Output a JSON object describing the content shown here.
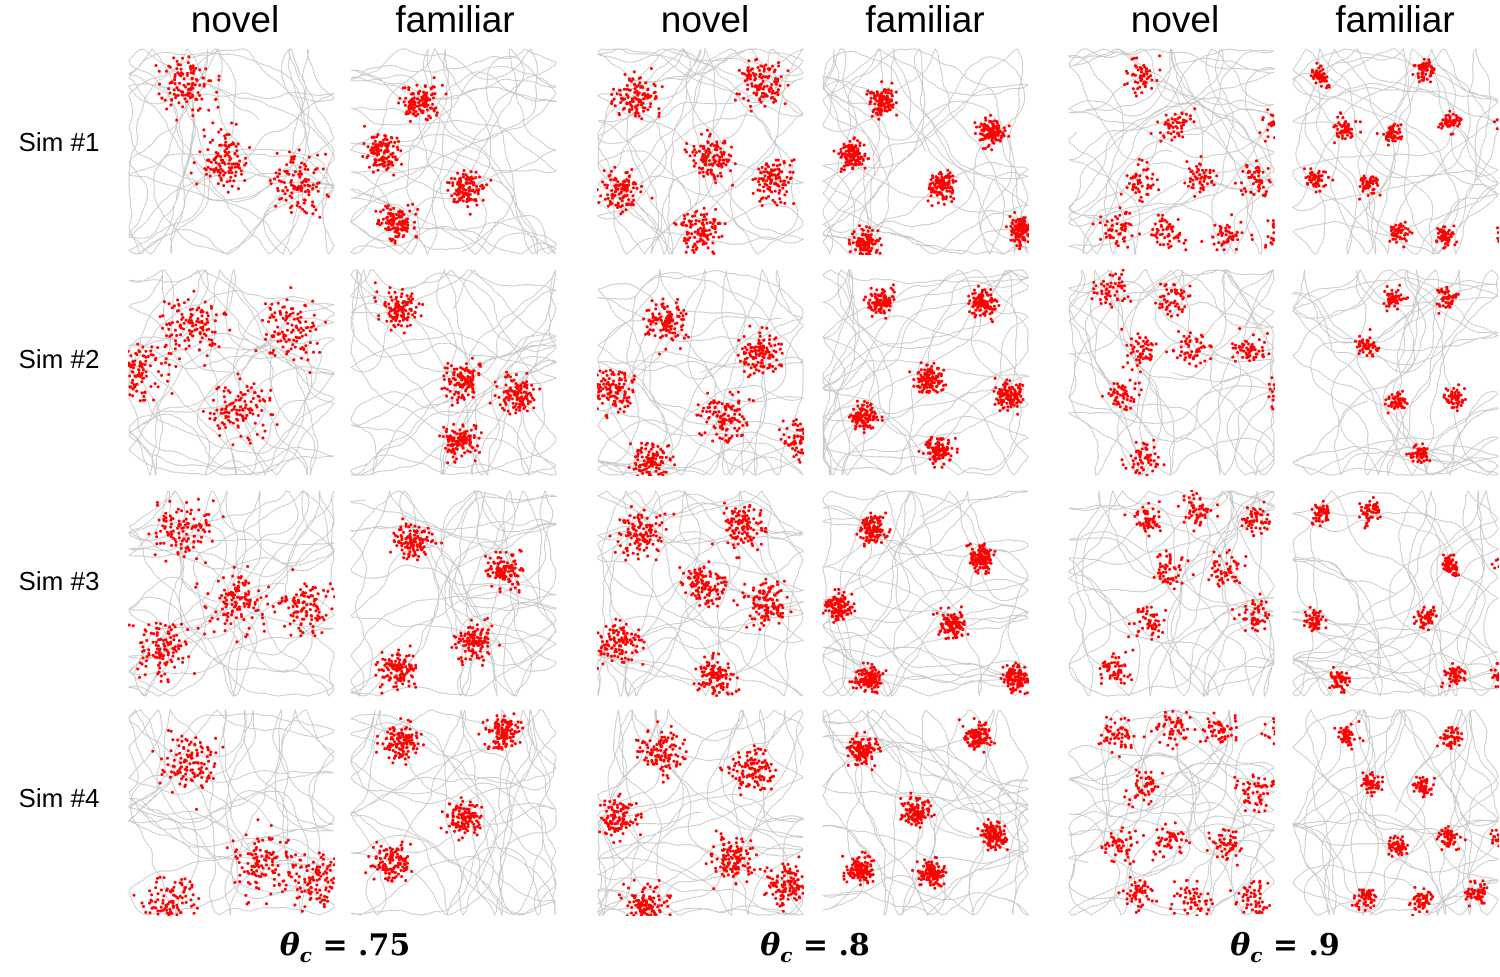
{
  "figure": {
    "column_headers": [
      "novel",
      "familiar",
      "novel",
      "familiar",
      "novel",
      "familiar"
    ],
    "row_labels": [
      "Sim #1",
      "Sim #2",
      "Sim #3",
      "Sim #4"
    ],
    "theta_groups": [
      {
        "symbol": "θ",
        "subscript": "c",
        "value": "= .75"
      },
      {
        "symbol": "θ",
        "subscript": "c",
        "value": "= .8"
      },
      {
        "symbol": "θ",
        "subscript": "c",
        "value": "= .9"
      }
    ],
    "colors": {
      "trajectory": "#c8c8c8",
      "spikes": "#ff0000",
      "background": "#ffffff"
    }
  }
}
